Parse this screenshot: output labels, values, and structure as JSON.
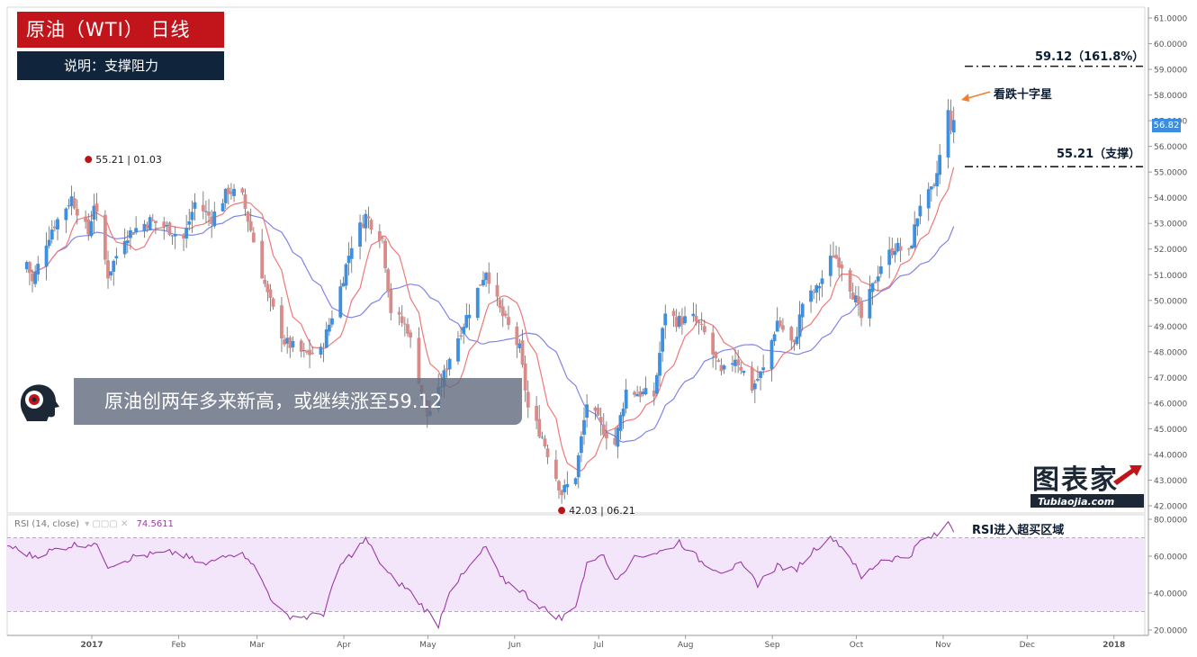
{
  "header": {
    "title": "原油（WTI） 日线",
    "subtitle": "说明：支撑阻力"
  },
  "banner": {
    "text": "原油创两年多来新高，或继续涨至59.12"
  },
  "brand": {
    "name": "图表家",
    "url_text": "Tubiaojia.com"
  },
  "annotations": {
    "resistance_label": "59.12（161.8%）",
    "support_label": "55.21（支撑）",
    "doji_label": "看跌十字星",
    "rsi_label": "RSI进入超买区域",
    "high_marker": "55.21 | 01.03",
    "low_marker": "42.03 | 06.21"
  },
  "rsi_legend": {
    "name": "RSI (14, close)",
    "value": "74.5611"
  },
  "colors": {
    "up": "#3d8fe0",
    "down": "#d98b89",
    "ma_fast": "#f07878",
    "ma_slow": "#7f84ea",
    "rsi_line": "#9b3aa6",
    "rsi_band": "#f3e6fb",
    "title_bg": "#c2151b",
    "subtitle_bg": "#10243b",
    "arrow": "#f07f2d"
  },
  "chart_data": [
    {
      "type": "candlestick",
      "title": "原油（WTI） 日线",
      "ylim": [
        41.7,
        61.3
      ],
      "y_ticks": [
        "61.0000",
        "60.0000",
        "59.0000",
        "58.0000",
        "57.0000",
        "56.0000",
        "55.0000",
        "54.0000",
        "53.0000",
        "52.0000",
        "51.0000",
        "50.0000",
        "49.0000",
        "48.0000",
        "47.0000",
        "46.0000",
        "45.0000",
        "44.0000",
        "43.0000",
        "42.0000"
      ],
      "x_ticks": [
        "2017",
        "Feb",
        "Mar",
        "Apr",
        "May",
        "Jun",
        "Jul",
        "Aug",
        "Sep",
        "Oct",
        "Nov",
        "Dec",
        "2018"
      ],
      "last_price": "56.82",
      "levels": [
        {
          "value": 59.12,
          "label": "59.12（161.8%）"
        },
        {
          "value": 55.21,
          "label": "55.21（支撑）"
        }
      ],
      "markers": [
        {
          "value": 55.21,
          "label": "55.21 | 01.03"
        },
        {
          "value": 42.03,
          "label": "42.03 | 06.21"
        }
      ],
      "anchors": [
        {
          "date": "2016-12-12",
          "close": 51.5
        },
        {
          "date": "2016-12-14",
          "close": 50.7
        },
        {
          "date": "2016-12-19",
          "close": 52.3
        },
        {
          "date": "2016-12-21",
          "close": 52.8
        },
        {
          "date": "2016-12-28",
          "close": 54.0
        },
        {
          "date": "2017-01-03",
          "close": 52.6
        },
        {
          "date": "2017-01-05",
          "close": 53.8
        },
        {
          "date": "2017-01-10",
          "close": 51.0
        },
        {
          "date": "2017-01-16",
          "close": 52.5
        },
        {
          "date": "2017-01-20",
          "close": 52.8
        },
        {
          "date": "2017-01-25",
          "close": 53.1
        },
        {
          "date": "2017-01-30",
          "close": 52.9
        },
        {
          "date": "2017-02-06",
          "close": 52.4
        },
        {
          "date": "2017-02-10",
          "close": 53.8
        },
        {
          "date": "2017-02-16",
          "close": 53.2
        },
        {
          "date": "2017-02-22",
          "close": 54.3
        },
        {
          "date": "2017-02-27",
          "close": 54.0
        },
        {
          "date": "2017-03-08",
          "close": 50.2
        },
        {
          "date": "2017-03-14",
          "close": 48.4
        },
        {
          "date": "2017-03-21",
          "close": 47.9
        },
        {
          "date": "2017-03-27",
          "close": 48.0
        },
        {
          "date": "2017-04-03",
          "close": 50.5
        },
        {
          "date": "2017-04-07",
          "close": 52.2
        },
        {
          "date": "2017-04-12",
          "close": 53.3
        },
        {
          "date": "2017-04-18",
          "close": 52.4
        },
        {
          "date": "2017-04-21",
          "close": 49.6
        },
        {
          "date": "2017-04-27",
          "close": 48.9
        },
        {
          "date": "2017-05-04",
          "close": 45.5
        },
        {
          "date": "2017-05-08",
          "close": 46.4
        },
        {
          "date": "2017-05-12",
          "close": 47.8
        },
        {
          "date": "2017-05-17",
          "close": 49.1
        },
        {
          "date": "2017-05-25",
          "close": 51.2
        },
        {
          "date": "2017-05-30",
          "close": 49.6
        },
        {
          "date": "2017-06-06",
          "close": 48.1
        },
        {
          "date": "2017-06-09",
          "close": 45.8
        },
        {
          "date": "2017-06-14",
          "close": 44.7
        },
        {
          "date": "2017-06-21",
          "close": 42.5
        },
        {
          "date": "2017-06-26",
          "close": 43.2
        },
        {
          "date": "2017-06-30",
          "close": 46.0
        },
        {
          "date": "2017-07-05",
          "close": 45.1
        },
        {
          "date": "2017-07-10",
          "close": 44.4
        },
        {
          "date": "2017-07-14",
          "close": 46.5
        },
        {
          "date": "2017-07-18",
          "close": 46.4
        },
        {
          "date": "2017-07-24",
          "close": 46.3
        },
        {
          "date": "2017-07-28",
          "close": 49.6
        },
        {
          "date": "2017-08-01",
          "close": 49.2
        },
        {
          "date": "2017-08-07",
          "close": 49.3
        },
        {
          "date": "2017-08-11",
          "close": 48.7
        },
        {
          "date": "2017-08-17",
          "close": 47.1
        },
        {
          "date": "2017-08-22",
          "close": 47.8
        },
        {
          "date": "2017-08-28",
          "close": 46.6
        },
        {
          "date": "2017-09-01",
          "close": 47.3
        },
        {
          "date": "2017-09-06",
          "close": 49.2
        },
        {
          "date": "2017-09-12",
          "close": 48.2
        },
        {
          "date": "2017-09-15",
          "close": 49.9
        },
        {
          "date": "2017-09-20",
          "close": 50.4
        },
        {
          "date": "2017-09-26",
          "close": 51.8
        },
        {
          "date": "2017-09-29",
          "close": 51.4
        },
        {
          "date": "2017-10-04",
          "close": 50.0
        },
        {
          "date": "2017-10-06",
          "close": 49.3
        },
        {
          "date": "2017-10-13",
          "close": 51.4
        },
        {
          "date": "2017-10-18",
          "close": 52.1
        },
        {
          "date": "2017-10-23",
          "close": 51.8
        },
        {
          "date": "2017-10-27",
          "close": 53.8
        },
        {
          "date": "2017-11-01",
          "close": 54.3
        },
        {
          "date": "2017-11-03",
          "close": 55.6
        },
        {
          "date": "2017-11-06",
          "close": 57.3
        },
        {
          "date": "2017-11-07",
          "close": 56.8
        },
        {
          "date": "2017-11-08",
          "close": 56.82
        }
      ]
    },
    {
      "type": "line",
      "title": "RSI (14, close)",
      "ylim": [
        17,
        82
      ],
      "y_ticks": [
        "80.0000",
        "60.0000",
        "40.0000",
        "20.0000"
      ],
      "overbought": 70,
      "oversold": 30,
      "last_value": 74.5611,
      "anchors": [
        {
          "date": "2016-12-05",
          "value": 66
        },
        {
          "date": "2016-12-14",
          "value": 60
        },
        {
          "date": "2016-12-28",
          "value": 66
        },
        {
          "date": "2017-01-05",
          "value": 67
        },
        {
          "date": "2017-01-10",
          "value": 55
        },
        {
          "date": "2017-01-20",
          "value": 60
        },
        {
          "date": "2017-02-03",
          "value": 62
        },
        {
          "date": "2017-02-14",
          "value": 55
        },
        {
          "date": "2017-02-22",
          "value": 62
        },
        {
          "date": "2017-03-01",
          "value": 60
        },
        {
          "date": "2017-03-09",
          "value": 38
        },
        {
          "date": "2017-03-14",
          "value": 28
        },
        {
          "date": "2017-03-22",
          "value": 27
        },
        {
          "date": "2017-03-28",
          "value": 29
        },
        {
          "date": "2017-04-03",
          "value": 55
        },
        {
          "date": "2017-04-10",
          "value": 66
        },
        {
          "date": "2017-04-12",
          "value": 69
        },
        {
          "date": "2017-04-20",
          "value": 50
        },
        {
          "date": "2017-04-27",
          "value": 42
        },
        {
          "date": "2017-05-04",
          "value": 30
        },
        {
          "date": "2017-05-08",
          "value": 23
        },
        {
          "date": "2017-05-12",
          "value": 42
        },
        {
          "date": "2017-05-17",
          "value": 50
        },
        {
          "date": "2017-05-25",
          "value": 65
        },
        {
          "date": "2017-05-30",
          "value": 48
        },
        {
          "date": "2017-06-06",
          "value": 42
        },
        {
          "date": "2017-06-14",
          "value": 32
        },
        {
          "date": "2017-06-21",
          "value": 26
        },
        {
          "date": "2017-06-26",
          "value": 34
        },
        {
          "date": "2017-06-30",
          "value": 55
        },
        {
          "date": "2017-07-05",
          "value": 62
        },
        {
          "date": "2017-07-10",
          "value": 48
        },
        {
          "date": "2017-07-18",
          "value": 60
        },
        {
          "date": "2017-07-28",
          "value": 63
        },
        {
          "date": "2017-08-02",
          "value": 68
        },
        {
          "date": "2017-08-10",
          "value": 57
        },
        {
          "date": "2017-08-17",
          "value": 52
        },
        {
          "date": "2017-08-24",
          "value": 55
        },
        {
          "date": "2017-08-30",
          "value": 45
        },
        {
          "date": "2017-09-06",
          "value": 55
        },
        {
          "date": "2017-09-12",
          "value": 52
        },
        {
          "date": "2017-09-20",
          "value": 65
        },
        {
          "date": "2017-09-26",
          "value": 70
        },
        {
          "date": "2017-10-02",
          "value": 60
        },
        {
          "date": "2017-10-06",
          "value": 48
        },
        {
          "date": "2017-10-13",
          "value": 58
        },
        {
          "date": "2017-10-23",
          "value": 60
        },
        {
          "date": "2017-10-27",
          "value": 68
        },
        {
          "date": "2017-11-03",
          "value": 72
        },
        {
          "date": "2017-11-06",
          "value": 79
        },
        {
          "date": "2017-11-08",
          "value": 74.5611
        }
      ]
    }
  ]
}
